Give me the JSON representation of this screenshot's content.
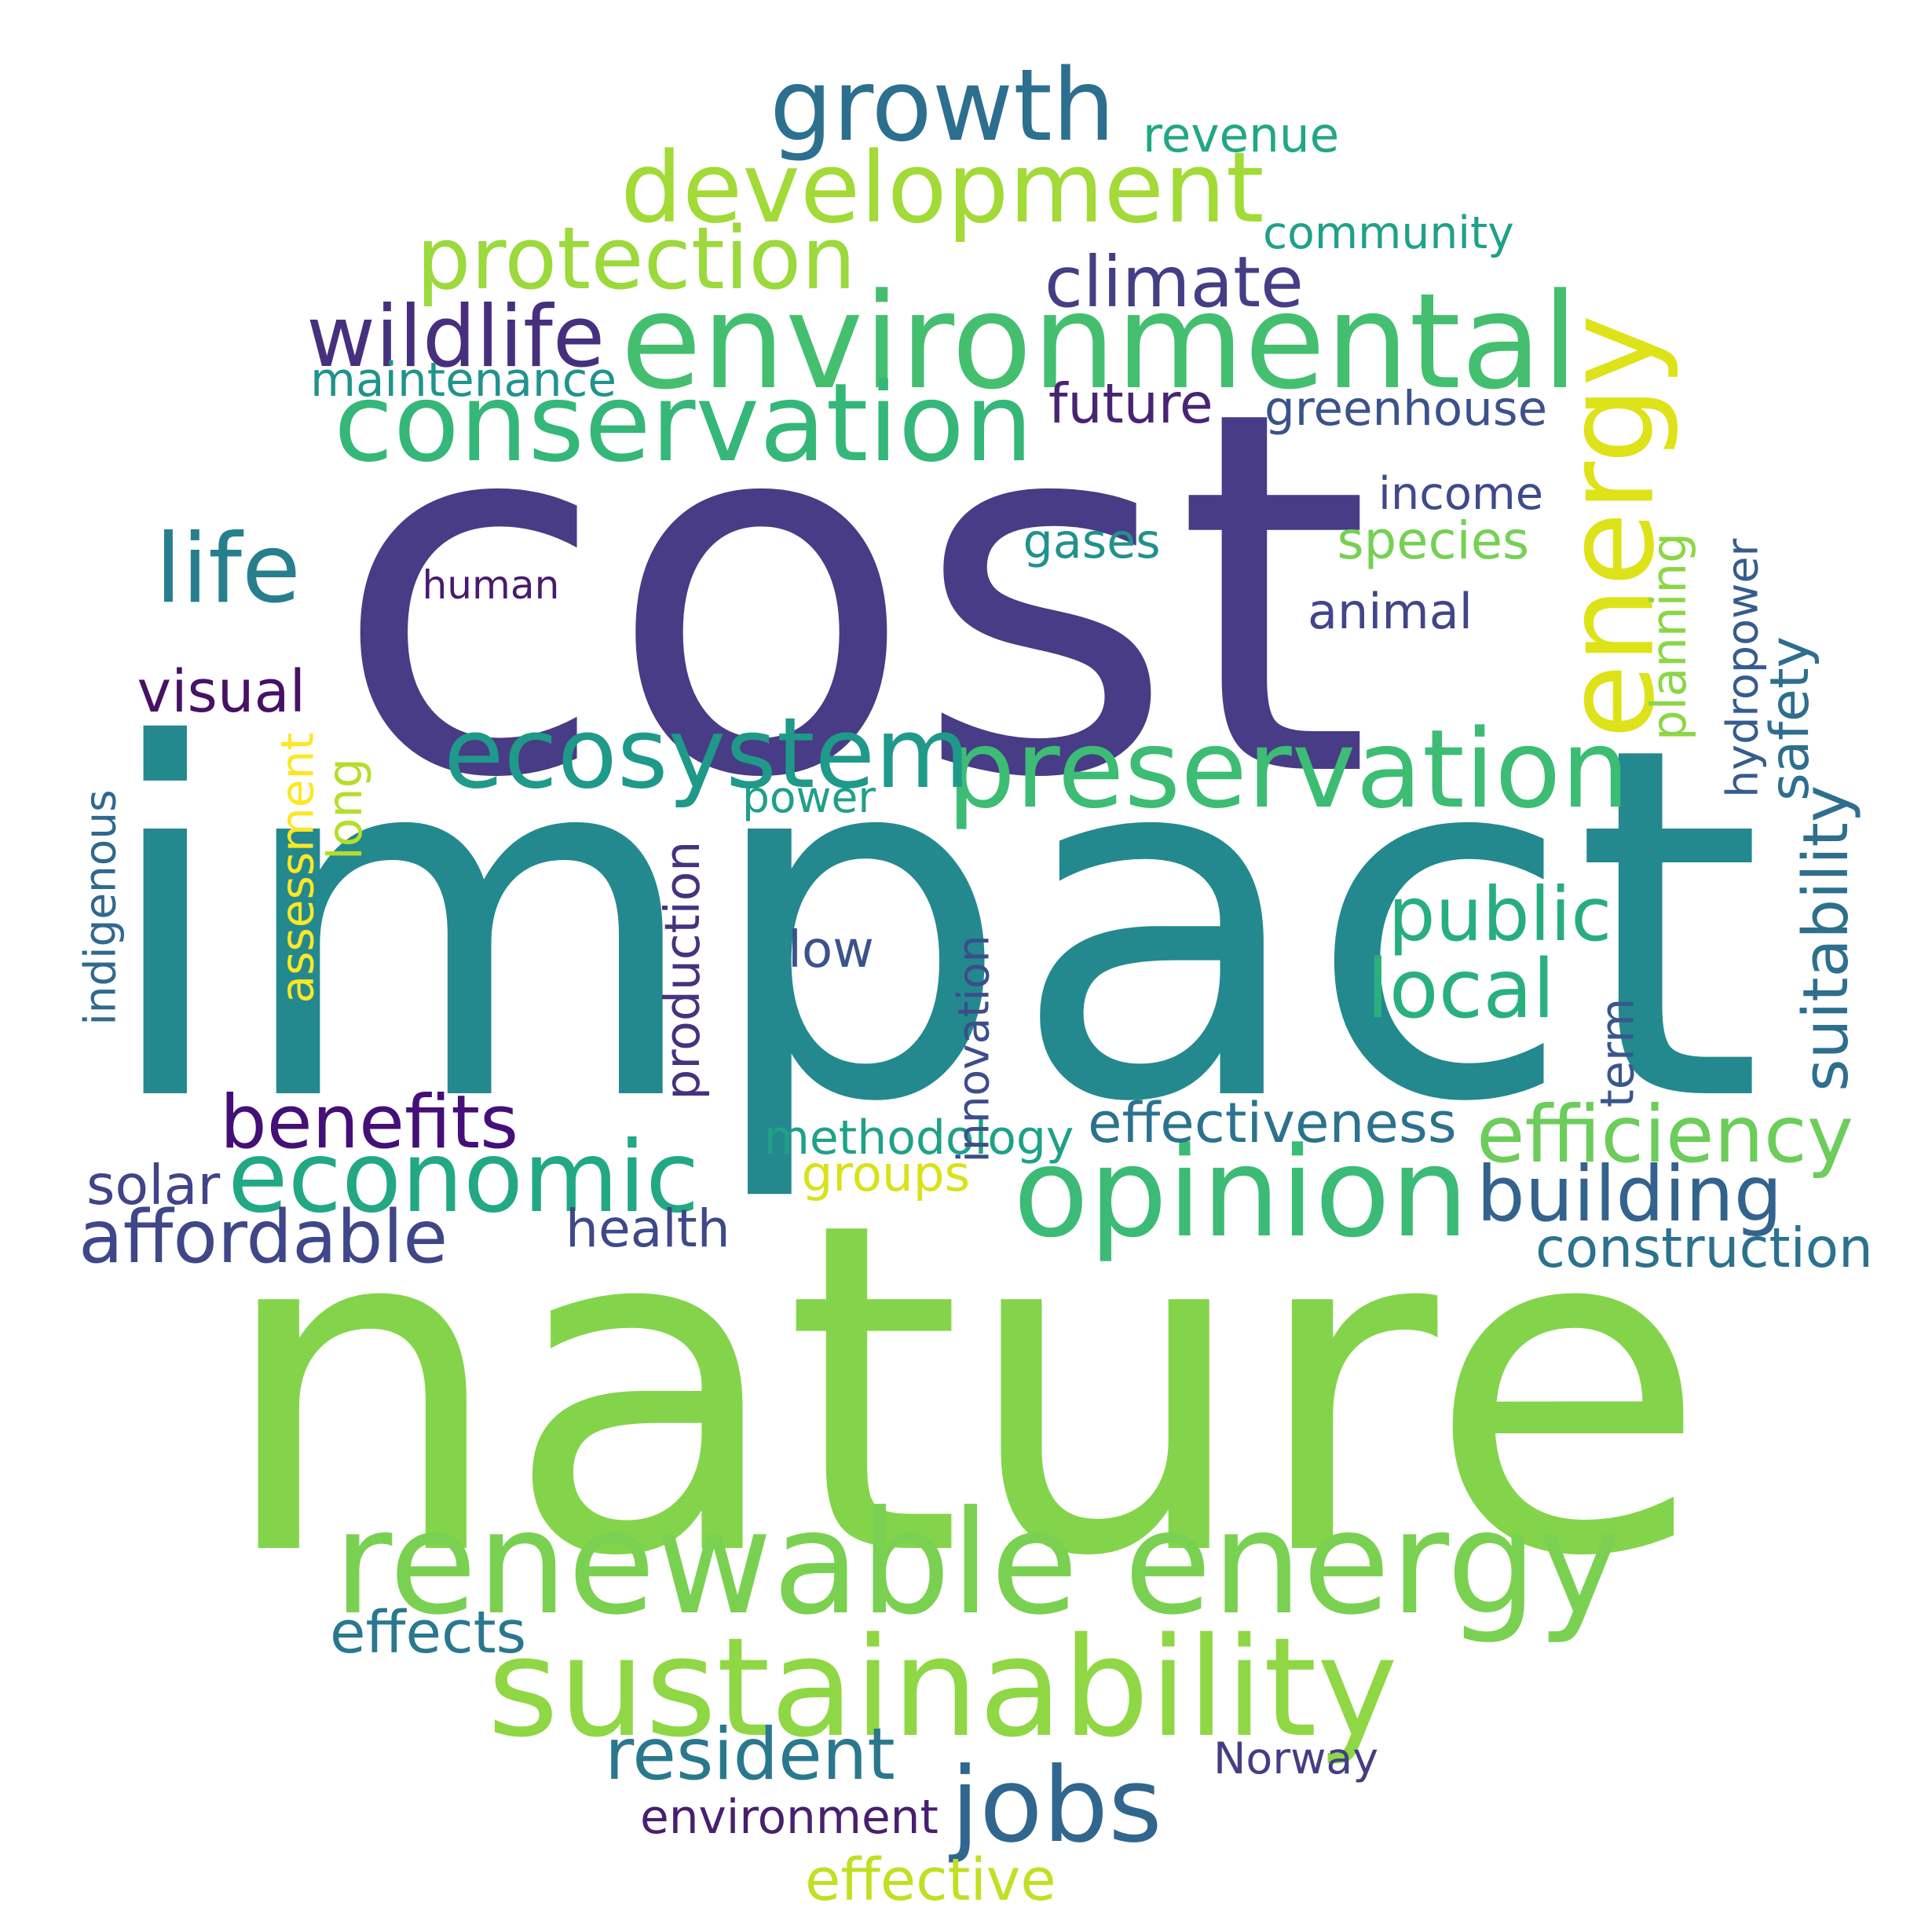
{
  "words": [
    {
      "text": "cost",
      "color": "#473c85",
      "orientation": "horizontal"
    },
    {
      "text": "impact",
      "color": "#23898e",
      "orientation": "horizontal"
    },
    {
      "text": "nature",
      "color": "#84d44b",
      "orientation": "horizontal"
    },
    {
      "text": "environmental",
      "color": "#44bf70",
      "orientation": "horizontal"
    },
    {
      "text": "renewable energy",
      "color": "#7ad151",
      "orientation": "horizontal"
    },
    {
      "text": "sustainability",
      "color": "#8fd744",
      "orientation": "horizontal"
    },
    {
      "text": "development",
      "color": "#a2da37",
      "orientation": "horizontal"
    },
    {
      "text": "conservation",
      "color": "#35b779",
      "orientation": "horizontal"
    },
    {
      "text": "growth",
      "color": "#2d6f8e",
      "orientation": "horizontal"
    },
    {
      "text": "preservation",
      "color": "#3dbc74",
      "orientation": "horizontal"
    },
    {
      "text": "ecosystem",
      "color": "#1f998a",
      "orientation": "horizontal"
    },
    {
      "text": "economic",
      "color": "#22a884",
      "orientation": "horizontal"
    },
    {
      "text": "opinion",
      "color": "#3bbb75",
      "orientation": "horizontal"
    },
    {
      "text": "energy",
      "color": "#dde318",
      "orientation": "vertical"
    },
    {
      "text": "protection",
      "color": "#9bd93c",
      "orientation": "horizontal"
    },
    {
      "text": "jobs",
      "color": "#31668e",
      "orientation": "horizontal"
    },
    {
      "text": "climate",
      "color": "#433e85",
      "orientation": "horizontal"
    },
    {
      "text": "wildlife",
      "color": "#46307e",
      "orientation": "horizontal"
    },
    {
      "text": "resident",
      "color": "#2a788e",
      "orientation": "horizontal"
    },
    {
      "text": "benefits",
      "color": "#440f76",
      "orientation": "horizontal"
    },
    {
      "text": "affordable",
      "color": "#3f4788",
      "orientation": "horizontal"
    },
    {
      "text": "efficiency",
      "color": "#6ccd5a",
      "orientation": "horizontal"
    },
    {
      "text": "building",
      "color": "#33638d",
      "orientation": "horizontal"
    },
    {
      "text": "public",
      "color": "#27ad81",
      "orientation": "horizontal"
    },
    {
      "text": "local",
      "color": "#2ab07f",
      "orientation": "horizontal"
    },
    {
      "text": "life",
      "color": "#277f8e",
      "orientation": "horizontal"
    },
    {
      "text": "maintenance",
      "color": "#20938c",
      "orientation": "horizontal"
    },
    {
      "text": "future",
      "color": "#482475",
      "orientation": "horizontal"
    },
    {
      "text": "greenhouse",
      "color": "#3b528b",
      "orientation": "horizontal"
    },
    {
      "text": "revenue",
      "color": "#22a785",
      "orientation": "horizontal"
    },
    {
      "text": "community",
      "color": "#1fa188",
      "orientation": "horizontal"
    },
    {
      "text": "income",
      "color": "#3e4a89",
      "orientation": "horizontal"
    },
    {
      "text": "species",
      "color": "#75d054",
      "orientation": "horizontal"
    },
    {
      "text": "gases",
      "color": "#21918c",
      "orientation": "horizontal"
    },
    {
      "text": "human",
      "color": "#481b6d",
      "orientation": "horizontal"
    },
    {
      "text": "animal",
      "color": "#404688",
      "orientation": "horizontal"
    },
    {
      "text": "visual",
      "color": "#471164",
      "orientation": "horizontal"
    },
    {
      "text": "power",
      "color": "#1fa088",
      "orientation": "horizontal"
    },
    {
      "text": "low",
      "color": "#3b528b",
      "orientation": "horizontal"
    },
    {
      "text": "health",
      "color": "#3e4989",
      "orientation": "horizontal"
    },
    {
      "text": "solar",
      "color": "#414487",
      "orientation": "horizontal"
    },
    {
      "text": "methodology",
      "color": "#1fa187",
      "orientation": "horizontal"
    },
    {
      "text": "groups",
      "color": "#d8e219",
      "orientation": "horizontal"
    },
    {
      "text": "effectiveness",
      "color": "#2c728e",
      "orientation": "horizontal"
    },
    {
      "text": "construction",
      "color": "#2c728e",
      "orientation": "horizontal"
    },
    {
      "text": "effects",
      "color": "#2a788e",
      "orientation": "horizontal"
    },
    {
      "text": "Norway",
      "color": "#433e85",
      "orientation": "horizontal"
    },
    {
      "text": "environment",
      "color": "#481f70",
      "orientation": "horizontal"
    },
    {
      "text": "effective",
      "color": "#c2df23",
      "orientation": "horizontal"
    },
    {
      "text": "indigenous",
      "color": "#31688e",
      "orientation": "vertical"
    },
    {
      "text": "assessment",
      "color": "#fde725",
      "orientation": "vertical"
    },
    {
      "text": "long",
      "color": "#b5de2b",
      "orientation": "vertical"
    },
    {
      "text": "production",
      "color": "#46327e",
      "orientation": "vertical"
    },
    {
      "text": "innovation",
      "color": "#3d4d8a",
      "orientation": "vertical"
    },
    {
      "text": "planning",
      "color": "#8bd646",
      "orientation": "vertical"
    },
    {
      "text": "hydropower",
      "color": "#365c8d",
      "orientation": "vertical"
    },
    {
      "text": "safety",
      "color": "#2e6e8e",
      "orientation": "vertical"
    },
    {
      "text": "suitability",
      "color": "#2e6f8e",
      "orientation": "vertical"
    },
    {
      "text": "term",
      "color": "#39568c",
      "orientation": "vertical"
    }
  ]
}
